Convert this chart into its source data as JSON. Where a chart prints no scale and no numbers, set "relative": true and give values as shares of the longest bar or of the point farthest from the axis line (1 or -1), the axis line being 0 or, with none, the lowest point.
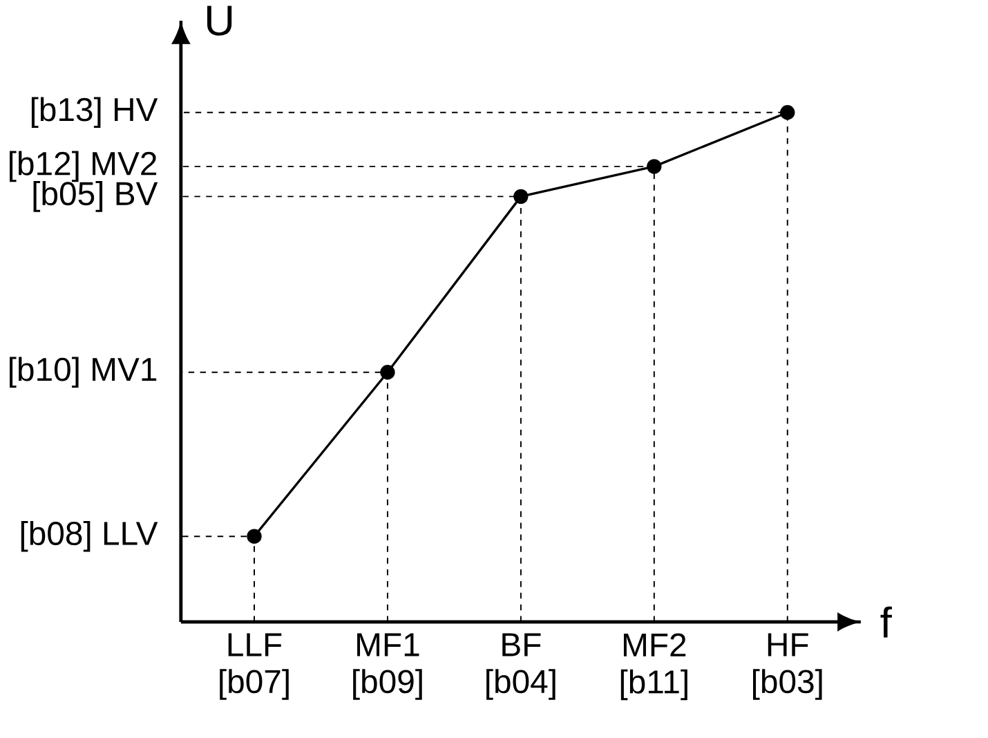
{
  "chart_data": {
    "type": "line",
    "xlabel": "f",
    "ylabel": "U",
    "relative": true,
    "categories": [
      "LLF [b07]",
      "MF1 [b09]",
      "BF [b04]",
      "MF2 [b11]",
      "HF [b03]"
    ],
    "values": [
      0.168,
      0.49,
      0.835,
      0.894,
      1.0
    ],
    "color": "#000000",
    "marker": "circle",
    "line_style": "solid",
    "annotations": [
      "[b08] LLV",
      "[b10] MV1",
      "[b05] BV",
      "[b12] MV2",
      "[b13] HV"
    ]
  }
}
